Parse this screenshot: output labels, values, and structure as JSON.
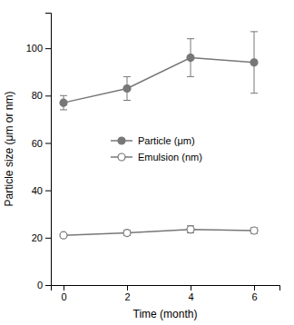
{
  "chart_data": {
    "type": "line",
    "x": [
      0,
      2,
      4,
      6
    ],
    "xlabel": "Time (month)",
    "ylabel": "Particle size (μm or nm)",
    "series": [
      {
        "name": "Particle (μm)",
        "color": "#777777",
        "marker": "filled-circle",
        "values": [
          77,
          83,
          96,
          94
        ],
        "errors": [
          3,
          5,
          8,
          13
        ]
      },
      {
        "name": "Emulsion (nm)",
        "color": "#777777",
        "marker": "open-circle",
        "values": [
          21,
          22,
          23.5,
          23
        ],
        "errors": [
          0.5,
          1.0,
          1.5,
          1.2
        ]
      }
    ],
    "xlim": [
      -0.4,
      6.8
    ],
    "ylim": [
      0,
      115
    ],
    "xticks": [
      0,
      2,
      4,
      6
    ],
    "yticks": [
      0,
      20,
      40,
      60,
      80,
      100
    ],
    "legend": "center"
  }
}
